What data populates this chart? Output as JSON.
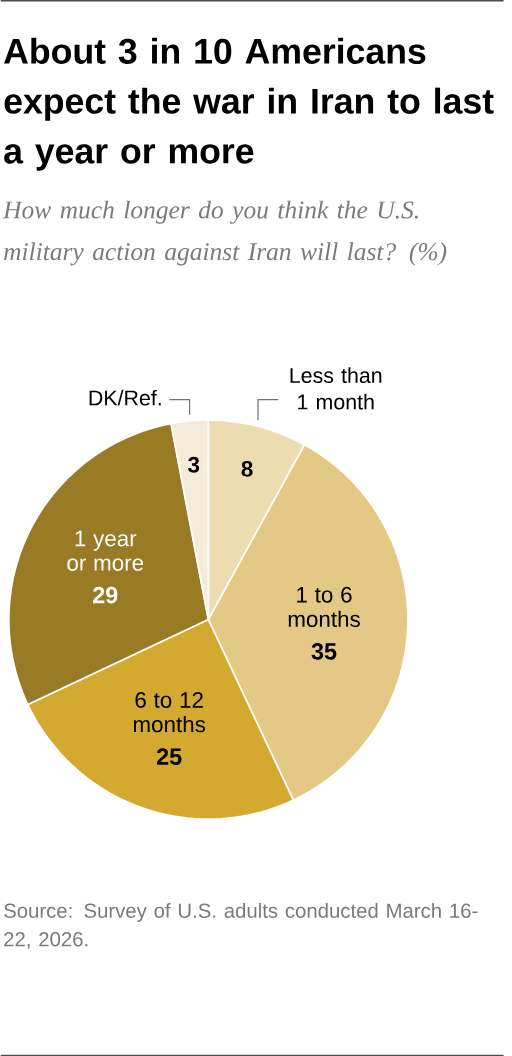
{
  "chart_data": {
    "type": "pie",
    "title": "About 3 in 10 Americans expect the war in Iran to last a year or more",
    "subtitle": "How much longer do you think the U.S. military action against Iran will last? (%)",
    "categories": [
      "Less than 1 month",
      "1 to 6 months",
      "6 to 12 months",
      "1 year or more",
      "DK/Ref."
    ],
    "values": [
      8,
      35,
      25,
      29,
      3
    ],
    "colors": [
      "#ecdcb0",
      "#e3c985",
      "#d4a92f",
      "#9a7b25",
      "#f4ecd8"
    ],
    "data_labels": true,
    "annotations": [
      "Source: Survey of U.S. adults conducted March 16-22, 2026."
    ]
  }
}
